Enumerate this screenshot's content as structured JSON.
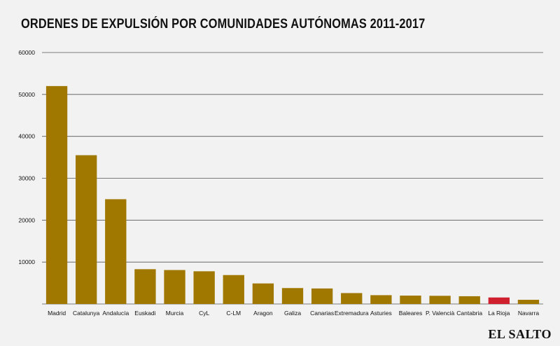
{
  "colors": {
    "background": "#f2f2f2",
    "bar": "#a07800",
    "highlight_bar": "#d0202e",
    "grid": "#555555",
    "text": "#111111"
  },
  "brand": "EL SALTO",
  "chart_data": {
    "type": "bar",
    "title": "ORDENES DE EXPULSIÓN POR COMUNIDADES AUTÓNOMAS 2011-2017",
    "xlabel": "",
    "ylabel": "",
    "ylim": [
      0,
      60000
    ],
    "yticks": [
      "60000",
      "50000",
      "40000",
      "30000",
      "20000",
      "10000"
    ],
    "ytick_values": [
      60000,
      50000,
      40000,
      30000,
      20000,
      10000
    ],
    "grid": true,
    "legend": "none",
    "highlight_category": "La Rioja",
    "categories": [
      "Madrid",
      "Catalunya",
      "Andalucía",
      "Euskadi",
      "Murcia",
      "CyL",
      "C-LM",
      "Aragon",
      "Galiza",
      "Canarias",
      "Extremadura",
      "Asturies",
      "Baleares",
      "P. Valencià",
      "Cantabria",
      "La Rioja",
      "Navarra"
    ],
    "values": [
      52000,
      35500,
      25000,
      8300,
      8100,
      7800,
      6900,
      4900,
      3800,
      3700,
      2600,
      2100,
      2000,
      1950,
      1850,
      1550,
      1000
    ]
  }
}
